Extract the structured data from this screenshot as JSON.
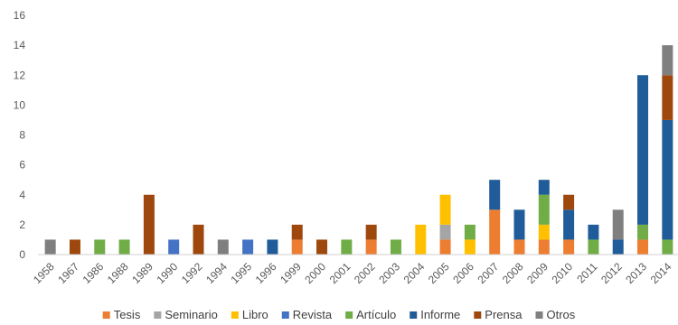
{
  "chart_data": {
    "type": "bar",
    "stacked": true,
    "title": "",
    "xlabel": "",
    "ylabel": "",
    "ylim": [
      0,
      16
    ],
    "y_ticks": [
      0,
      2,
      4,
      6,
      8,
      10,
      12,
      14,
      16
    ],
    "grid": false,
    "legend_position": "bottom",
    "categories": [
      "1958",
      "1967",
      "1986",
      "1988",
      "1989",
      "1990",
      "1992",
      "1994",
      "1995",
      "1996",
      "1999",
      "2000",
      "2001",
      "2002",
      "2003",
      "2004",
      "2005",
      "2006",
      "2007",
      "2008",
      "2009",
      "2010",
      "2011",
      "2012",
      "2013",
      "2014"
    ],
    "series": [
      {
        "name": "Tesis",
        "color": "#ED7D31",
        "values": [
          0,
          0,
          0,
          0,
          0,
          0,
          0,
          0,
          0,
          0,
          1,
          0,
          0,
          1,
          0,
          0,
          1,
          0,
          3,
          1,
          1,
          1,
          0,
          0,
          1,
          0
        ]
      },
      {
        "name": "Seminario",
        "color": "#A5A5A5",
        "values": [
          0,
          0,
          0,
          0,
          0,
          0,
          0,
          0,
          0,
          0,
          0,
          0,
          0,
          0,
          0,
          0,
          1,
          0,
          0,
          0,
          0,
          0,
          0,
          0,
          0,
          0
        ]
      },
      {
        "name": "Libro",
        "color": "#FFC000",
        "values": [
          0,
          0,
          0,
          0,
          0,
          0,
          0,
          0,
          0,
          0,
          0,
          0,
          0,
          0,
          0,
          2,
          2,
          1,
          0,
          0,
          1,
          0,
          0,
          0,
          0,
          0
        ]
      },
      {
        "name": "Revista",
        "color": "#4472C4",
        "values": [
          0,
          0,
          0,
          0,
          0,
          1,
          0,
          0,
          1,
          0,
          0,
          0,
          0,
          0,
          0,
          0,
          0,
          0,
          0,
          0,
          0,
          0,
          0,
          0,
          0,
          0
        ]
      },
      {
        "name": "Artículo",
        "color": "#70AD47",
        "values": [
          0,
          0,
          1,
          1,
          0,
          0,
          0,
          0,
          0,
          0,
          0,
          0,
          1,
          0,
          1,
          0,
          0,
          1,
          0,
          0,
          2,
          0,
          1,
          0,
          1,
          1
        ]
      },
      {
        "name": "Informe",
        "color": "#1F5C99",
        "values": [
          0,
          0,
          0,
          0,
          0,
          0,
          0,
          0,
          0,
          1,
          0,
          0,
          0,
          0,
          0,
          0,
          0,
          0,
          2,
          2,
          1,
          2,
          1,
          1,
          10,
          8
        ]
      },
      {
        "name": "Prensa",
        "color": "#9E480E",
        "values": [
          0,
          1,
          0,
          0,
          4,
          0,
          2,
          0,
          0,
          0,
          1,
          1,
          0,
          1,
          0,
          0,
          0,
          0,
          0,
          0,
          0,
          1,
          0,
          0,
          0,
          3
        ]
      },
      {
        "name": "Otros",
        "color": "#7F7F7F",
        "values": [
          1,
          0,
          0,
          0,
          0,
          0,
          0,
          1,
          0,
          0,
          0,
          0,
          0,
          0,
          0,
          0,
          0,
          0,
          0,
          0,
          0,
          0,
          0,
          2,
          0,
          2
        ]
      }
    ]
  }
}
